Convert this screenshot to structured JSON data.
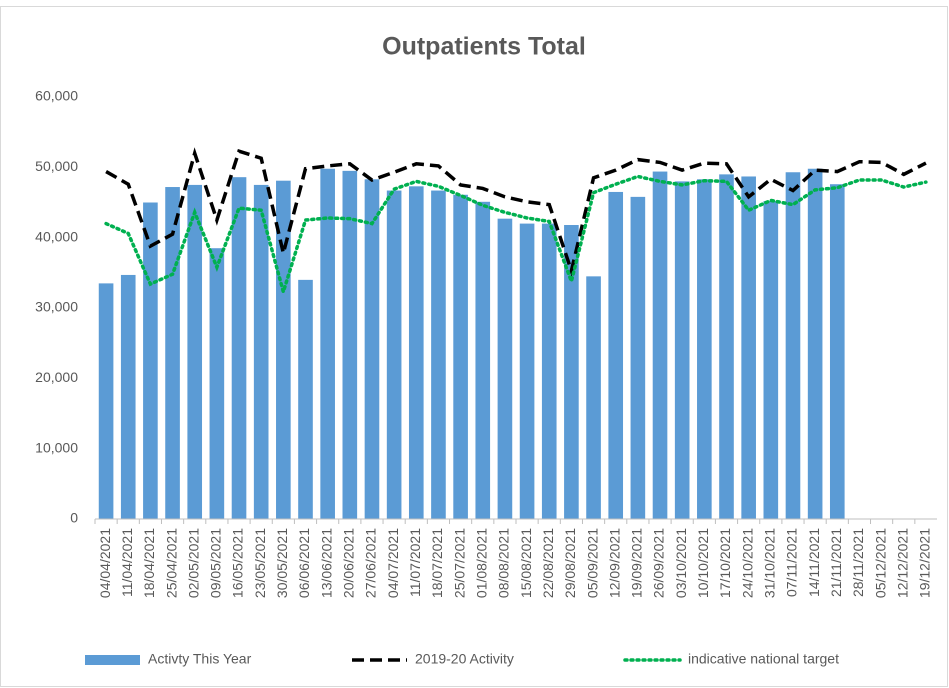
{
  "chart_data": {
    "type": "bar",
    "title": "Outpatients Total",
    "categories": [
      "04/04/2021",
      "11/04/2021",
      "18/04/2021",
      "25/04/2021",
      "02/05/2021",
      "09/05/2021",
      "16/05/2021",
      "23/05/2021",
      "30/05/2021",
      "06/06/2021",
      "13/06/2021",
      "20/06/2021",
      "27/06/2021",
      "04/07/2021",
      "11/07/2021",
      "18/07/2021",
      "25/07/2021",
      "01/08/2021",
      "08/08/2021",
      "15/08/2021",
      "22/08/2021",
      "29/08/2021",
      "05/09/2021",
      "12/09/2021",
      "19/09/2021",
      "26/09/2021",
      "03/10/2021",
      "10/10/2021",
      "17/10/2021",
      "24/10/2021",
      "31/10/2021",
      "07/11/2021",
      "14/11/2021",
      "21/11/2021",
      "28/11/2021",
      "05/12/2021",
      "12/12/2021",
      "19/12/2021"
    ],
    "series": [
      {
        "name": "Activty This Year",
        "type": "bar",
        "color": "#5b9bd5",
        "values": [
          33500,
          34700,
          45000,
          47200,
          47500,
          38500,
          48600,
          47500,
          48100,
          34000,
          49800,
          49500,
          48300,
          46700,
          47300,
          46700,
          46100,
          45100,
          42700,
          42000,
          42000,
          41800,
          34500,
          46500,
          45800,
          49400,
          48000,
          48300,
          49000,
          48700,
          45200,
          49300,
          49800,
          47600,
          null,
          null,
          null,
          null
        ]
      },
      {
        "name": "2019-20 Activity",
        "type": "line",
        "style": "dashed",
        "color": "#000000",
        "values": [
          49400,
          47600,
          38800,
          40500,
          52000,
          42500,
          52300,
          51300,
          37800,
          49800,
          50200,
          50500,
          48200,
          49300,
          50500,
          50200,
          47500,
          47000,
          45800,
          45100,
          44700,
          35300,
          48500,
          49600,
          51100,
          50700,
          49600,
          50600,
          50500,
          45800,
          48300,
          46700,
          49600,
          49400,
          50800,
          50700,
          49000,
          50600
        ]
      },
      {
        "name": "indicative national target",
        "type": "line",
        "style": "dotted",
        "color": "#00b050",
        "values": [
          42000,
          40600,
          33400,
          34800,
          43600,
          35800,
          44200,
          43900,
          32300,
          42500,
          42800,
          42700,
          42000,
          46900,
          48000,
          47300,
          46000,
          44600,
          43600,
          42800,
          42300,
          33800,
          46400,
          47600,
          48700,
          48000,
          47500,
          48100,
          48000,
          43900,
          45300,
          44700,
          46800,
          47100,
          48200,
          48200,
          47200,
          47900
        ]
      }
    ],
    "ylim": [
      0,
      60000
    ],
    "yticks": [
      0,
      {
        "value": 10000,
        "label": "10,000"
      },
      {
        "value": 20000,
        "label": "20,000"
      },
      {
        "value": 30000,
        "label": "30,000"
      },
      {
        "value": 40000,
        "label": "40,000"
      },
      {
        "value": 50000,
        "label": "50,000"
      },
      {
        "value": 60000,
        "label": "60,000"
      }
    ],
    "grid": false,
    "legend": "bottom"
  }
}
